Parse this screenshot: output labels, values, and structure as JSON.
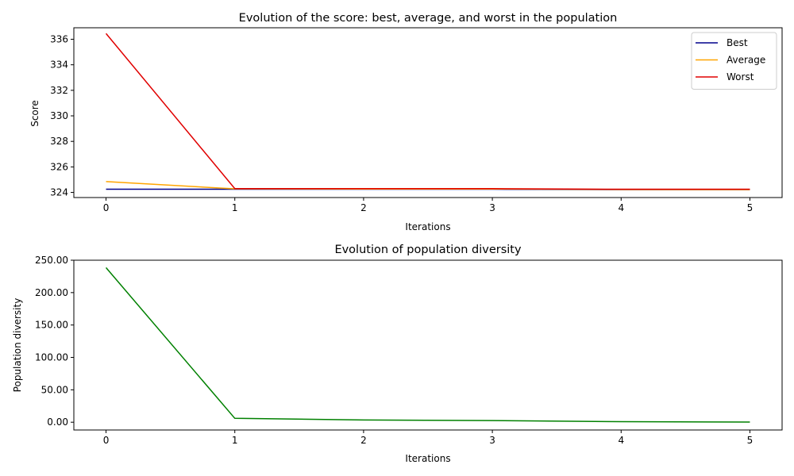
{
  "chart_data": [
    {
      "type": "line",
      "title": "Evolution of the score: best, average, and worst in the population",
      "xlabel": "Iterations",
      "ylabel": "Score",
      "x": [
        0,
        1,
        2,
        3,
        4,
        5
      ],
      "xlim": [
        -0.25,
        5.25
      ],
      "ylim": [
        323.6,
        336.9
      ],
      "xticks": [
        0,
        1,
        2,
        3,
        4,
        5
      ],
      "yticks": [
        324,
        326,
        328,
        330,
        332,
        334,
        336
      ],
      "ytick_labels": [
        "324",
        "326",
        "328",
        "330",
        "332",
        "334",
        "336"
      ],
      "grid": false,
      "legend_position": "upper right",
      "series": [
        {
          "name": "Best",
          "color": "#00008b",
          "values": [
            324.25,
            324.25,
            324.25,
            324.25,
            324.22,
            324.22
          ]
        },
        {
          "name": "Average",
          "color": "#ffa500",
          "values": [
            324.85,
            324.28,
            324.27,
            324.27,
            324.23,
            324.22
          ]
        },
        {
          "name": "Worst",
          "color": "#e00000",
          "values": [
            336.45,
            324.3,
            324.3,
            324.3,
            324.25,
            324.25
          ]
        }
      ]
    },
    {
      "type": "line",
      "title": "Evolution of population diversity",
      "xlabel": "Iterations",
      "ylabel": "Population diversity",
      "x": [
        0,
        1,
        2,
        3,
        4,
        5
      ],
      "xlim": [
        -0.25,
        5.25
      ],
      "ylim": [
        -12,
        250
      ],
      "xticks": [
        0,
        1,
        2,
        3,
        4,
        5
      ],
      "yticks": [
        0,
        50,
        100,
        150,
        200,
        250
      ],
      "ytick_labels": [
        "0.00",
        "50.00",
        "100.00",
        "150.00",
        "200.00",
        "250.00"
      ],
      "grid": false,
      "series": [
        {
          "name": "",
          "color": "#008000",
          "values": [
            238.5,
            6.0,
            3.5,
            2.5,
            0.8,
            0.3
          ]
        }
      ]
    }
  ]
}
